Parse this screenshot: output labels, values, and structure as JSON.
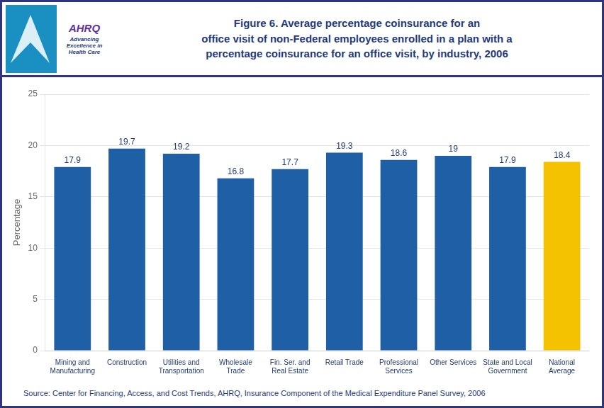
{
  "chart_data": {
    "type": "bar",
    "title": [
      "Figure 6. Average percentage coinsurance for an",
      "office visit of non-Federal employees enrolled in a plan with a",
      "percentage coinsurance for an office visit, by industry, 2006"
    ],
    "categories": [
      "Mining and\nManufacturing",
      "Construction",
      "Utilities and\nTransportation",
      "Wholesale\nTrade",
      "Fin. Ser. and\nReal Estate",
      "Retail Trade",
      "Professional\nServices",
      "Other Services",
      "State and Local\nGovernment",
      "National\nAverage"
    ],
    "values": [
      17.9,
      19.7,
      19.2,
      16.8,
      17.7,
      19.3,
      18.6,
      19.0,
      17.9,
      18.4
    ],
    "colors": [
      "#1F5FA6",
      "#1F5FA6",
      "#1F5FA6",
      "#1F5FA6",
      "#1F5FA6",
      "#1F5FA6",
      "#1F5FA6",
      "#1F5FA6",
      "#1F5FA6",
      "#F5C200"
    ],
    "ylabel": "Percentage",
    "ylim": [
      0,
      25
    ],
    "yticks": [
      0,
      5,
      10,
      15,
      20,
      25
    ],
    "grid": true,
    "data_labels": true,
    "annotations": [
      "Source: Center for Financing, Access, and Cost Trends, AHRQ, Insurance Component of the Medical Expenditure Panel Survey, 2006",
      "AHRQ",
      "Advancing\nExcellence in\nHealth Care"
    ]
  }
}
